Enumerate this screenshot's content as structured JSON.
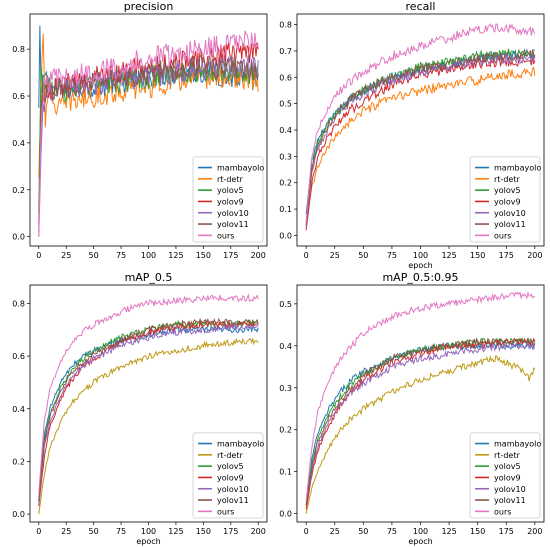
{
  "colors": {
    "mambayolo": "#1f77b4",
    "rt-detr-top": "#ff7f0e",
    "rt-detr-bottom": "#bf9a17",
    "yolov5": "#2ca02c",
    "yolov9": "#d62728",
    "yolov10": "#9467bd",
    "yolov11": "#8c564b",
    "ours": "#e377c2"
  },
  "chart_data": [
    {
      "type": "line",
      "title": "precision",
      "xlabel": "",
      "ylabel": "",
      "xlim": [
        -8,
        208
      ],
      "ylim": [
        -0.04,
        0.95
      ],
      "xticks": [
        0,
        25,
        50,
        75,
        100,
        125,
        150,
        175,
        200
      ],
      "yticks": [
        0.0,
        0.2,
        0.4,
        0.6,
        0.8
      ],
      "ytick_labels": [
        "0.0",
        "0.2",
        "0.4",
        "0.6",
        "0.8"
      ],
      "legend": "bottom-right",
      "grid": false,
      "noise": 0.05,
      "series": [
        {
          "name": "mambayolo",
          "color_key": "mambayolo",
          "x": [
            0,
            1,
            2,
            3,
            5,
            8,
            12,
            20,
            30,
            50,
            75,
            100,
            125,
            150,
            175,
            200
          ],
          "values": [
            0.55,
            0.9,
            0.65,
            0.6,
            0.68,
            0.66,
            0.64,
            0.62,
            0.63,
            0.64,
            0.66,
            0.68,
            0.7,
            0.7,
            0.68,
            0.66
          ]
        },
        {
          "name": "rt-detr",
          "color_key": "rt-detr-top",
          "x": [
            0,
            2,
            4,
            6,
            8,
            12,
            20,
            30,
            50,
            75,
            100,
            125,
            150,
            175,
            200
          ],
          "values": [
            0.25,
            0.6,
            0.9,
            0.5,
            0.62,
            0.58,
            0.55,
            0.58,
            0.6,
            0.62,
            0.64,
            0.66,
            0.68,
            0.68,
            0.66
          ]
        },
        {
          "name": "yolov5",
          "color_key": "yolov5",
          "x": [
            0,
            2,
            4,
            8,
            15,
            30,
            50,
            75,
            100,
            125,
            150,
            175,
            200
          ],
          "values": [
            0.1,
            0.72,
            0.62,
            0.66,
            0.62,
            0.63,
            0.65,
            0.66,
            0.68,
            0.7,
            0.71,
            0.7,
            0.7
          ]
        },
        {
          "name": "yolov9",
          "color_key": "yolov9",
          "x": [
            0,
            2,
            4,
            8,
            15,
            30,
            50,
            75,
            100,
            125,
            150,
            175,
            200
          ],
          "values": [
            0.05,
            0.5,
            0.6,
            0.62,
            0.64,
            0.65,
            0.68,
            0.7,
            0.72,
            0.74,
            0.76,
            0.78,
            0.79
          ]
        },
        {
          "name": "yolov10",
          "color_key": "yolov10",
          "x": [
            0,
            2,
            4,
            8,
            15,
            30,
            50,
            75,
            100,
            125,
            150,
            175,
            200
          ],
          "values": [
            0.0,
            0.35,
            0.55,
            0.62,
            0.63,
            0.64,
            0.65,
            0.67,
            0.68,
            0.7,
            0.72,
            0.73,
            0.72
          ]
        },
        {
          "name": "yolov11",
          "color_key": "yolov11",
          "x": [
            0,
            2,
            4,
            8,
            15,
            30,
            50,
            75,
            100,
            125,
            150,
            175,
            200
          ],
          "values": [
            0.02,
            0.55,
            0.62,
            0.64,
            0.63,
            0.64,
            0.66,
            0.68,
            0.7,
            0.72,
            0.73,
            0.72,
            0.71
          ]
        },
        {
          "name": "ours",
          "color_key": "ours",
          "x": [
            0,
            2,
            4,
            8,
            15,
            30,
            50,
            75,
            100,
            125,
            150,
            175,
            200
          ],
          "values": [
            0.0,
            0.45,
            0.62,
            0.66,
            0.67,
            0.68,
            0.7,
            0.73,
            0.76,
            0.78,
            0.8,
            0.82,
            0.84
          ]
        }
      ]
    },
    {
      "type": "line",
      "title": "recall",
      "xlabel": "epoch",
      "ylabel": "",
      "xlim": [
        -8,
        208
      ],
      "ylim": [
        -0.04,
        0.84
      ],
      "xticks": [
        0,
        25,
        50,
        75,
        100,
        125,
        150,
        175,
        200
      ],
      "yticks": [
        0.0,
        0.1,
        0.2,
        0.3,
        0.4,
        0.5,
        0.6,
        0.7,
        0.8
      ],
      "ytick_labels": [
        "0.0",
        "0.1",
        "0.2",
        "0.3",
        "0.4",
        "0.5",
        "0.6",
        "0.7",
        "0.8"
      ],
      "legend": "bottom-right",
      "grid": false,
      "noise": 0.018,
      "series": [
        {
          "name": "mambayolo",
          "color_key": "mambayolo",
          "x": [
            0,
            5,
            10,
            20,
            30,
            40,
            50,
            75,
            100,
            125,
            150,
            175,
            200
          ],
          "values": [
            0.08,
            0.28,
            0.36,
            0.43,
            0.48,
            0.52,
            0.55,
            0.6,
            0.63,
            0.65,
            0.67,
            0.68,
            0.69
          ]
        },
        {
          "name": "rt-detr",
          "color_key": "rt-detr-top",
          "x": [
            0,
            5,
            10,
            20,
            30,
            40,
            50,
            75,
            100,
            125,
            150,
            175,
            200
          ],
          "values": [
            0.03,
            0.18,
            0.26,
            0.34,
            0.4,
            0.44,
            0.47,
            0.52,
            0.55,
            0.57,
            0.59,
            0.61,
            0.62
          ]
        },
        {
          "name": "yolov5",
          "color_key": "yolov5",
          "x": [
            0,
            5,
            10,
            20,
            30,
            40,
            50,
            75,
            100,
            125,
            150,
            175,
            200
          ],
          "values": [
            0.05,
            0.26,
            0.35,
            0.43,
            0.48,
            0.52,
            0.55,
            0.6,
            0.64,
            0.66,
            0.68,
            0.69,
            0.69
          ]
        },
        {
          "name": "yolov9",
          "color_key": "yolov9",
          "x": [
            0,
            5,
            10,
            20,
            30,
            40,
            50,
            75,
            100,
            125,
            150,
            175,
            200
          ],
          "values": [
            0.02,
            0.2,
            0.3,
            0.38,
            0.44,
            0.48,
            0.51,
            0.57,
            0.61,
            0.63,
            0.65,
            0.66,
            0.66
          ]
        },
        {
          "name": "yolov10",
          "color_key": "yolov10",
          "x": [
            0,
            5,
            10,
            20,
            30,
            40,
            50,
            75,
            100,
            125,
            150,
            175,
            200
          ],
          "values": [
            0.03,
            0.24,
            0.33,
            0.41,
            0.47,
            0.51,
            0.54,
            0.59,
            0.62,
            0.64,
            0.66,
            0.67,
            0.67
          ]
        },
        {
          "name": "yolov11",
          "color_key": "yolov11",
          "x": [
            0,
            5,
            10,
            20,
            30,
            40,
            50,
            75,
            100,
            125,
            150,
            175,
            200
          ],
          "values": [
            0.04,
            0.25,
            0.34,
            0.42,
            0.48,
            0.52,
            0.55,
            0.6,
            0.63,
            0.65,
            0.67,
            0.68,
            0.69
          ]
        },
        {
          "name": "ours",
          "color_key": "ours",
          "x": [
            0,
            5,
            10,
            20,
            30,
            40,
            50,
            75,
            100,
            125,
            150,
            175,
            200
          ],
          "values": [
            0.05,
            0.3,
            0.4,
            0.49,
            0.55,
            0.59,
            0.62,
            0.68,
            0.72,
            0.75,
            0.78,
            0.79,
            0.77
          ]
        }
      ]
    },
    {
      "type": "line",
      "title": "mAP_0.5",
      "xlabel": "epoch",
      "ylabel": "",
      "xlim": [
        -8,
        208
      ],
      "ylim": [
        -0.03,
        0.87
      ],
      "xticks": [
        0,
        25,
        50,
        75,
        100,
        125,
        150,
        175,
        200
      ],
      "yticks": [
        0.0,
        0.2,
        0.4,
        0.6,
        0.8
      ],
      "ytick_labels": [
        "0.0",
        "0.2",
        "0.4",
        "0.6",
        "0.8"
      ],
      "legend": "bottom-right",
      "grid": false,
      "noise": 0.012,
      "series": [
        {
          "name": "mambayolo",
          "color_key": "mambayolo",
          "x": [
            0,
            5,
            10,
            20,
            30,
            40,
            50,
            75,
            100,
            125,
            150,
            175,
            200
          ],
          "values": [
            0.05,
            0.3,
            0.4,
            0.5,
            0.56,
            0.6,
            0.62,
            0.66,
            0.68,
            0.7,
            0.7,
            0.7,
            0.7
          ]
        },
        {
          "name": "rt-detr",
          "color_key": "rt-detr-bottom",
          "x": [
            0,
            5,
            10,
            20,
            30,
            40,
            50,
            75,
            100,
            125,
            150,
            175,
            200
          ],
          "values": [
            0.0,
            0.15,
            0.25,
            0.35,
            0.42,
            0.47,
            0.5,
            0.56,
            0.6,
            0.62,
            0.64,
            0.65,
            0.66
          ]
        },
        {
          "name": "yolov5",
          "color_key": "yolov5",
          "x": [
            0,
            5,
            10,
            20,
            30,
            40,
            50,
            75,
            100,
            125,
            150,
            175,
            200
          ],
          "values": [
            0.05,
            0.28,
            0.38,
            0.48,
            0.55,
            0.59,
            0.62,
            0.67,
            0.7,
            0.72,
            0.72,
            0.72,
            0.73
          ]
        },
        {
          "name": "yolov9",
          "color_key": "yolov9",
          "x": [
            0,
            5,
            10,
            20,
            30,
            40,
            50,
            75,
            100,
            125,
            150,
            175,
            200
          ],
          "values": [
            0.03,
            0.22,
            0.33,
            0.44,
            0.51,
            0.56,
            0.59,
            0.65,
            0.69,
            0.71,
            0.72,
            0.72,
            0.72
          ]
        },
        {
          "name": "yolov10",
          "color_key": "yolov10",
          "x": [
            0,
            5,
            10,
            20,
            30,
            40,
            50,
            75,
            100,
            125,
            150,
            175,
            200
          ],
          "values": [
            0.04,
            0.25,
            0.35,
            0.45,
            0.52,
            0.56,
            0.59,
            0.64,
            0.67,
            0.69,
            0.7,
            0.71,
            0.71
          ]
        },
        {
          "name": "yolov11",
          "color_key": "yolov11",
          "x": [
            0,
            5,
            10,
            20,
            30,
            40,
            50,
            75,
            100,
            125,
            150,
            175,
            200
          ],
          "values": [
            0.05,
            0.27,
            0.37,
            0.47,
            0.54,
            0.58,
            0.61,
            0.66,
            0.7,
            0.72,
            0.73,
            0.73,
            0.73
          ]
        },
        {
          "name": "ours",
          "color_key": "ours",
          "x": [
            0,
            5,
            10,
            20,
            30,
            40,
            50,
            75,
            100,
            125,
            150,
            175,
            200
          ],
          "values": [
            0.08,
            0.35,
            0.47,
            0.58,
            0.65,
            0.69,
            0.72,
            0.77,
            0.8,
            0.81,
            0.82,
            0.82,
            0.82
          ]
        }
      ]
    },
    {
      "type": "line",
      "title": "mAP_0.5:0.95",
      "xlabel": "epoch",
      "ylabel": "",
      "xlim": [
        -8,
        208
      ],
      "ylim": [
        -0.02,
        0.545
      ],
      "xticks": [
        0,
        25,
        50,
        75,
        100,
        125,
        150,
        175,
        200
      ],
      "yticks": [
        0.0,
        0.1,
        0.2,
        0.3,
        0.4,
        0.5
      ],
      "ytick_labels": [
        "0.0",
        "0.1",
        "0.2",
        "0.3",
        "0.4",
        "0.5"
      ],
      "legend": "bottom-right",
      "grid": false,
      "noise": 0.008,
      "series": [
        {
          "name": "mambayolo",
          "color_key": "mambayolo",
          "x": [
            0,
            5,
            10,
            20,
            30,
            40,
            50,
            75,
            100,
            125,
            150,
            175,
            200
          ],
          "values": [
            0.02,
            0.13,
            0.19,
            0.25,
            0.29,
            0.32,
            0.34,
            0.37,
            0.39,
            0.4,
            0.4,
            0.4,
            0.4
          ]
        },
        {
          "name": "rt-detr",
          "color_key": "rt-detr-bottom",
          "x": [
            0,
            5,
            10,
            20,
            30,
            40,
            50,
            75,
            100,
            125,
            150,
            165,
            175,
            190,
            195,
            200
          ],
          "values": [
            0.0,
            0.06,
            0.1,
            0.16,
            0.2,
            0.23,
            0.25,
            0.29,
            0.32,
            0.34,
            0.36,
            0.37,
            0.36,
            0.34,
            0.32,
            0.35
          ]
        },
        {
          "name": "yolov5",
          "color_key": "yolov5",
          "x": [
            0,
            5,
            10,
            20,
            30,
            40,
            50,
            75,
            100,
            125,
            150,
            175,
            200
          ],
          "values": [
            0.02,
            0.12,
            0.18,
            0.24,
            0.28,
            0.31,
            0.33,
            0.37,
            0.39,
            0.4,
            0.41,
            0.41,
            0.41
          ]
        },
        {
          "name": "yolov9",
          "color_key": "yolov9",
          "x": [
            0,
            5,
            10,
            20,
            30,
            40,
            50,
            75,
            100,
            125,
            150,
            175,
            200
          ],
          "values": [
            0.01,
            0.09,
            0.15,
            0.21,
            0.26,
            0.29,
            0.32,
            0.36,
            0.38,
            0.4,
            0.4,
            0.41,
            0.41
          ]
        },
        {
          "name": "yolov10",
          "color_key": "yolov10",
          "x": [
            0,
            5,
            10,
            20,
            30,
            40,
            50,
            75,
            100,
            125,
            150,
            175,
            200
          ],
          "values": [
            0.02,
            0.1,
            0.16,
            0.22,
            0.26,
            0.29,
            0.31,
            0.35,
            0.37,
            0.38,
            0.39,
            0.4,
            0.4
          ]
        },
        {
          "name": "yolov11",
          "color_key": "yolov11",
          "x": [
            0,
            5,
            10,
            20,
            30,
            40,
            50,
            75,
            100,
            125,
            150,
            175,
            200
          ],
          "values": [
            0.02,
            0.11,
            0.17,
            0.23,
            0.27,
            0.3,
            0.33,
            0.37,
            0.39,
            0.4,
            0.41,
            0.41,
            0.41
          ]
        },
        {
          "name": "ours",
          "color_key": "ours",
          "x": [
            0,
            5,
            10,
            20,
            30,
            40,
            50,
            75,
            100,
            125,
            150,
            175,
            200
          ],
          "values": [
            0.03,
            0.16,
            0.24,
            0.32,
            0.37,
            0.4,
            0.43,
            0.47,
            0.49,
            0.5,
            0.51,
            0.52,
            0.52
          ]
        }
      ]
    }
  ]
}
